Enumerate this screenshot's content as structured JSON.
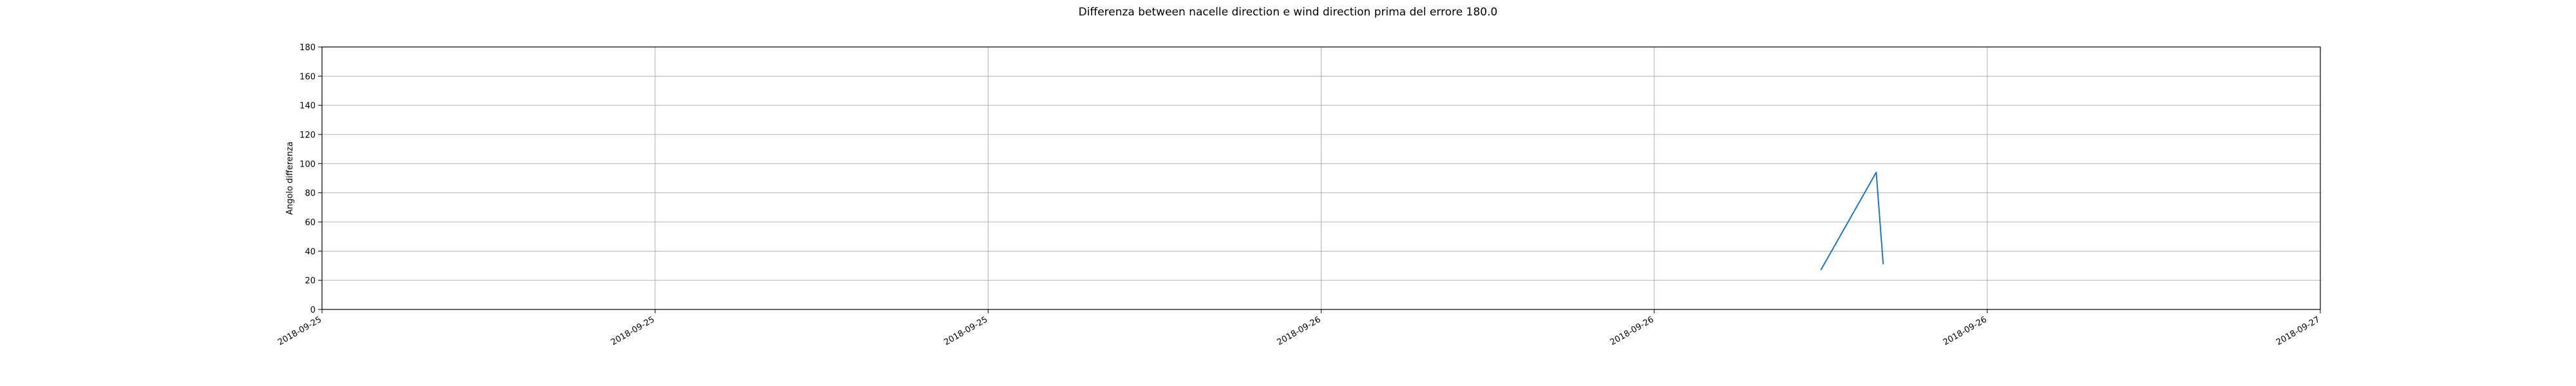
{
  "chart_data": {
    "type": "line",
    "title": "Differenza between nacelle direction e wind direction prima del errore 180.0",
    "xlabel": "",
    "ylabel": "Angolo differenza",
    "ylim": [
      0,
      180
    ],
    "yticks": [
      0,
      20,
      40,
      60,
      80,
      100,
      120,
      140,
      160,
      180
    ],
    "xlim": [
      "2018-09-25T00:00",
      "2018-09-27T00:00"
    ],
    "xticks": [
      {
        "t": "2018-09-25T00:00",
        "label": "2018-09-25"
      },
      {
        "t": "2018-09-25T08:00",
        "label": "2018-09-25"
      },
      {
        "t": "2018-09-25T16:00",
        "label": "2018-09-25"
      },
      {
        "t": "2018-09-26T00:00",
        "label": "2018-09-26"
      },
      {
        "t": "2018-09-26T08:00",
        "label": "2018-09-26"
      },
      {
        "t": "2018-09-26T16:00",
        "label": "2018-09-26"
      },
      {
        "t": "2018-09-27T00:00",
        "label": "2018-09-27"
      }
    ],
    "grid": true,
    "series": [
      {
        "color": "#1f77b4",
        "points": [
          {
            "x": "2018-09-26T12:00",
            "y": 27
          },
          {
            "x": "2018-09-26T13:20",
            "y": 94
          },
          {
            "x": "2018-09-26T13:30",
            "y": 31
          }
        ]
      }
    ]
  }
}
